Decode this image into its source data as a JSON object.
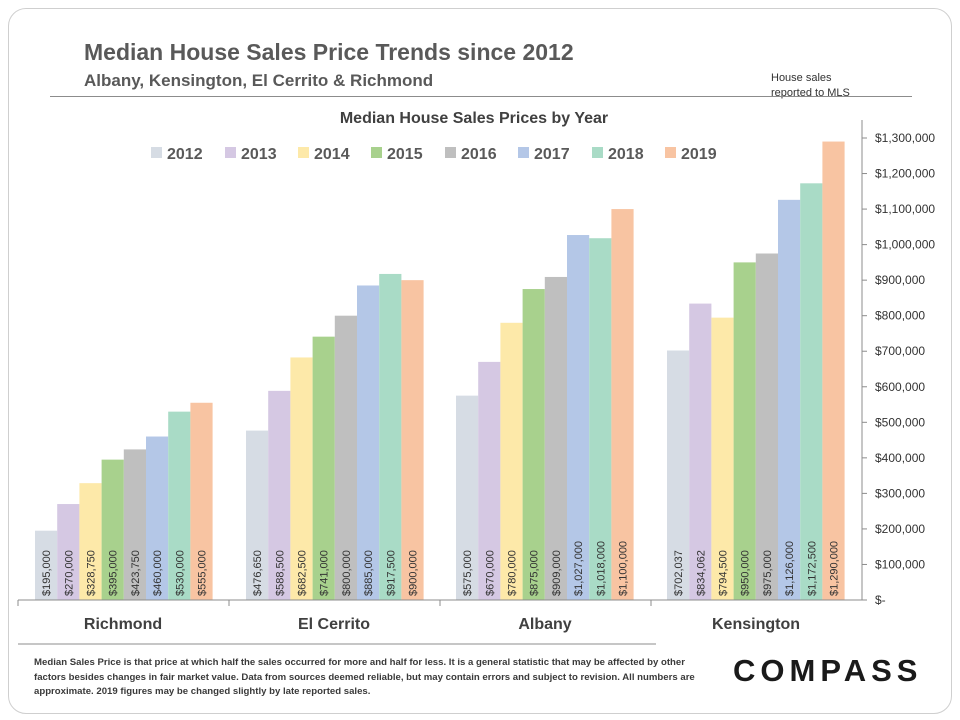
{
  "header": {
    "title": "Median House Sales Price Trends since 2012",
    "subtitle": "Albany, Kensington,  El Cerrito & Richmond",
    "note_line1": "House sales",
    "note_line2": "reported to MLS"
  },
  "footer": {
    "disclaimer": "Median Sales Price is that price at which half the sales occurred for more and half for less. It is a general statistic that may be affected by other factors besides changes in fair market value. Data from sources deemed reliable, but may contain errors and subject to revision.  All numbers are approximate. 2019 figures may be changed slightly by late reported sales."
  },
  "brand": {
    "logo_text": "COMPASS"
  },
  "chart_data": {
    "type": "bar",
    "title": "Median House Sales Prices by Year",
    "categories": [
      "Richmond",
      "El Cerrito",
      "Albany",
      "Kensington"
    ],
    "series": [
      {
        "name": "2012",
        "color": "#d6dce4",
        "values": [
          195000,
          476650,
          575000,
          702037
        ],
        "labels": [
          "$195,000",
          "$476,650",
          "$575,000",
          "$702,037"
        ]
      },
      {
        "name": "2013",
        "color": "#d5c8e3",
        "values": [
          270000,
          588500,
          670000,
          834062
        ],
        "labels": [
          "$270,000",
          "$588,500",
          "$670,000",
          "$834,062"
        ]
      },
      {
        "name": "2014",
        "color": "#fde9a9",
        "values": [
          328750,
          682500,
          780000,
          794500
        ],
        "labels": [
          "$328,750",
          "$682,500",
          "$780,000",
          "$794,500"
        ]
      },
      {
        "name": "2015",
        "color": "#a8d18d",
        "values": [
          395000,
          741000,
          875000,
          950000
        ],
        "labels": [
          "$395,000",
          "$741,000",
          "$875,000",
          "$950,000"
        ]
      },
      {
        "name": "2016",
        "color": "#bfbfbf",
        "values": [
          423750,
          800000,
          909000,
          975000
        ],
        "labels": [
          "$423,750",
          "$800,000",
          "$909,000",
          "$975,000"
        ]
      },
      {
        "name": "2017",
        "color": "#b4c7e7",
        "values": [
          460000,
          885000,
          1027000,
          1126000
        ],
        "labels": [
          "$460,000",
          "$885,000",
          "$1,027,000",
          "$1,126,000"
        ]
      },
      {
        "name": "2018",
        "color": "#a9dbc6",
        "values": [
          530000,
          917500,
          1018000,
          1172500
        ],
        "labels": [
          "$530,000",
          "$917,500",
          "$1,018,000",
          "$1,172,500"
        ]
      },
      {
        "name": "2019",
        "color": "#f8c4a2",
        "values": [
          555000,
          900000,
          1100000,
          1290000
        ],
        "labels": [
          "$555,000",
          "$900,000",
          "$1,100,000",
          "$1,290,000"
        ]
      }
    ],
    "ylim": [
      0,
      1300000
    ],
    "yticks": [
      0,
      100000,
      200000,
      300000,
      400000,
      500000,
      600000,
      700000,
      800000,
      900000,
      1000000,
      1100000,
      1200000,
      1300000
    ],
    "ytick_labels": [
      "$-",
      "$100,000",
      "$200,000",
      "$300,000",
      "$400,000",
      "$500,000",
      "$600,000",
      "$700,000",
      "$800,000",
      "$900,000",
      "$1,000,000",
      "$1,100,000",
      "$1,200,000",
      "$1,300,000"
    ],
    "y_axis_side": "right",
    "legend_position": "top",
    "grid": false
  }
}
